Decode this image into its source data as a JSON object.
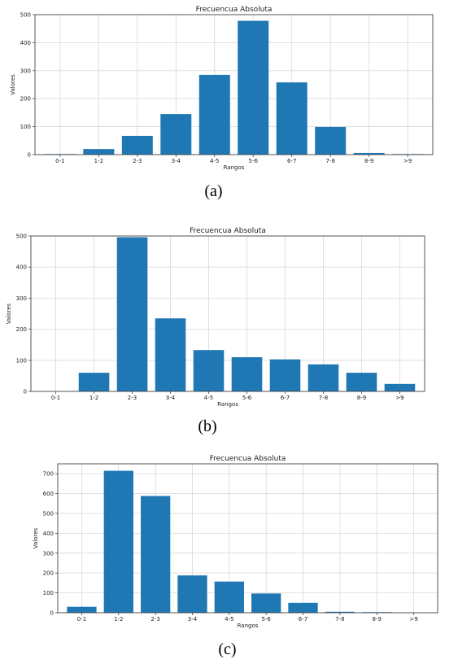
{
  "bottom_fragment": "… … … … …",
  "chart_data": [
    {
      "panel": "(a)",
      "type": "bar",
      "title": "Frecuencua Absoluta",
      "xlabel": "Rangos",
      "ylabel": "Valores",
      "categories": [
        "0-1",
        "1-2",
        "2-3",
        "3-4",
        "4-5",
        "5-6",
        "6-7",
        "7-8",
        "8-9",
        ">9"
      ],
      "values": [
        2,
        20,
        67,
        145,
        285,
        478,
        258,
        99,
        6,
        2
      ],
      "ylim": [
        0,
        500
      ],
      "yticks": [
        0,
        100,
        200,
        300,
        400,
        500
      ],
      "grid": true,
      "color": "#1f77b4"
    },
    {
      "panel": "(b)",
      "type": "bar",
      "title": "Frecuencua Absoluta",
      "xlabel": "Rangos",
      "ylabel": "Valores",
      "categories": [
        "0-1",
        "1-2",
        "2-3",
        "3-4",
        "4-5",
        "5-6",
        "6-7",
        "7-8",
        "8-9",
        ">9"
      ],
      "values": [
        0,
        60,
        496,
        235,
        133,
        110,
        103,
        87,
        60,
        24
      ],
      "ylim": [
        0,
        500
      ],
      "yticks": [
        0,
        100,
        200,
        300,
        400,
        500
      ],
      "grid": true,
      "color": "#1f77b4"
    },
    {
      "panel": "(c)",
      "type": "bar",
      "title": "Frecuencua Absoluta",
      "xlabel": "Rangos",
      "ylabel": "Valores",
      "categories": [
        "0-1",
        "1-2",
        "2-3",
        "3-4",
        "4-5",
        "5-6",
        "6-7",
        "7-8",
        "8-9",
        ">9"
      ],
      "values": [
        30,
        715,
        588,
        188,
        157,
        97,
        50,
        5,
        3,
        0
      ],
      "ylim": [
        0,
        750
      ],
      "yticks": [
        0,
        100,
        200,
        300,
        400,
        500,
        600,
        700
      ],
      "grid": true,
      "color": "#1f77b4"
    }
  ]
}
